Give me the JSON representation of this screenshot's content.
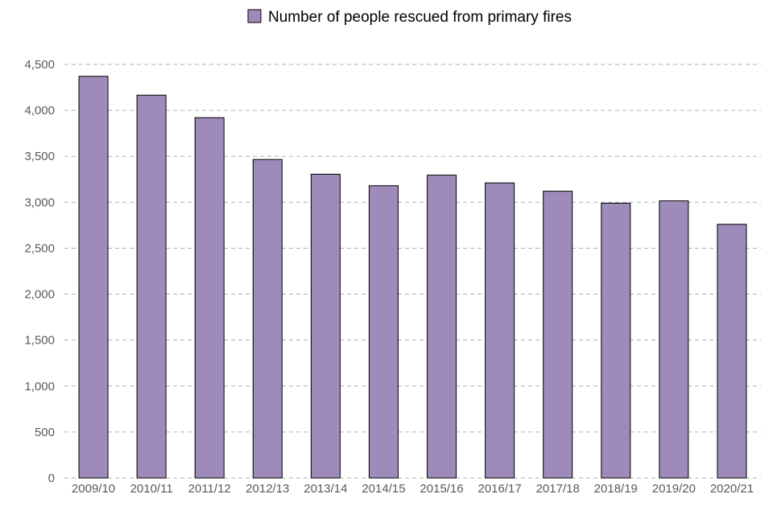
{
  "chart_data": {
    "type": "bar",
    "title": "",
    "xlabel": "",
    "ylabel": "",
    "categories": [
      "2009/10",
      "2010/11",
      "2011/12",
      "2012/13",
      "2013/14",
      "2014/15",
      "2015/16",
      "2016/17",
      "2017/18",
      "2018/19",
      "2019/20",
      "2020/21"
    ],
    "series": [
      {
        "name": "Number of people rescued from primary fires",
        "values": [
          4370,
          4165,
          3920,
          3465,
          3305,
          3180,
          3295,
          3210,
          3120,
          2990,
          3015,
          2760
        ]
      }
    ],
    "ylim": [
      0,
      4500
    ],
    "yticks": [
      0,
      500,
      1000,
      1500,
      2000,
      2500,
      3000,
      3500,
      4000,
      4500
    ],
    "ytick_labels": [
      "0",
      "500",
      "1,000",
      "1,500",
      "2,000",
      "2,500",
      "3,000",
      "3,500",
      "4,000",
      "4,500"
    ],
    "grid": true,
    "legend_position": "top-center",
    "colors": {
      "bar_fill": "#9e8bba",
      "bar_stroke": "#000000",
      "grid": "#b0b0b0",
      "axis_text": "#595959",
      "legend_text": "#000000"
    }
  }
}
